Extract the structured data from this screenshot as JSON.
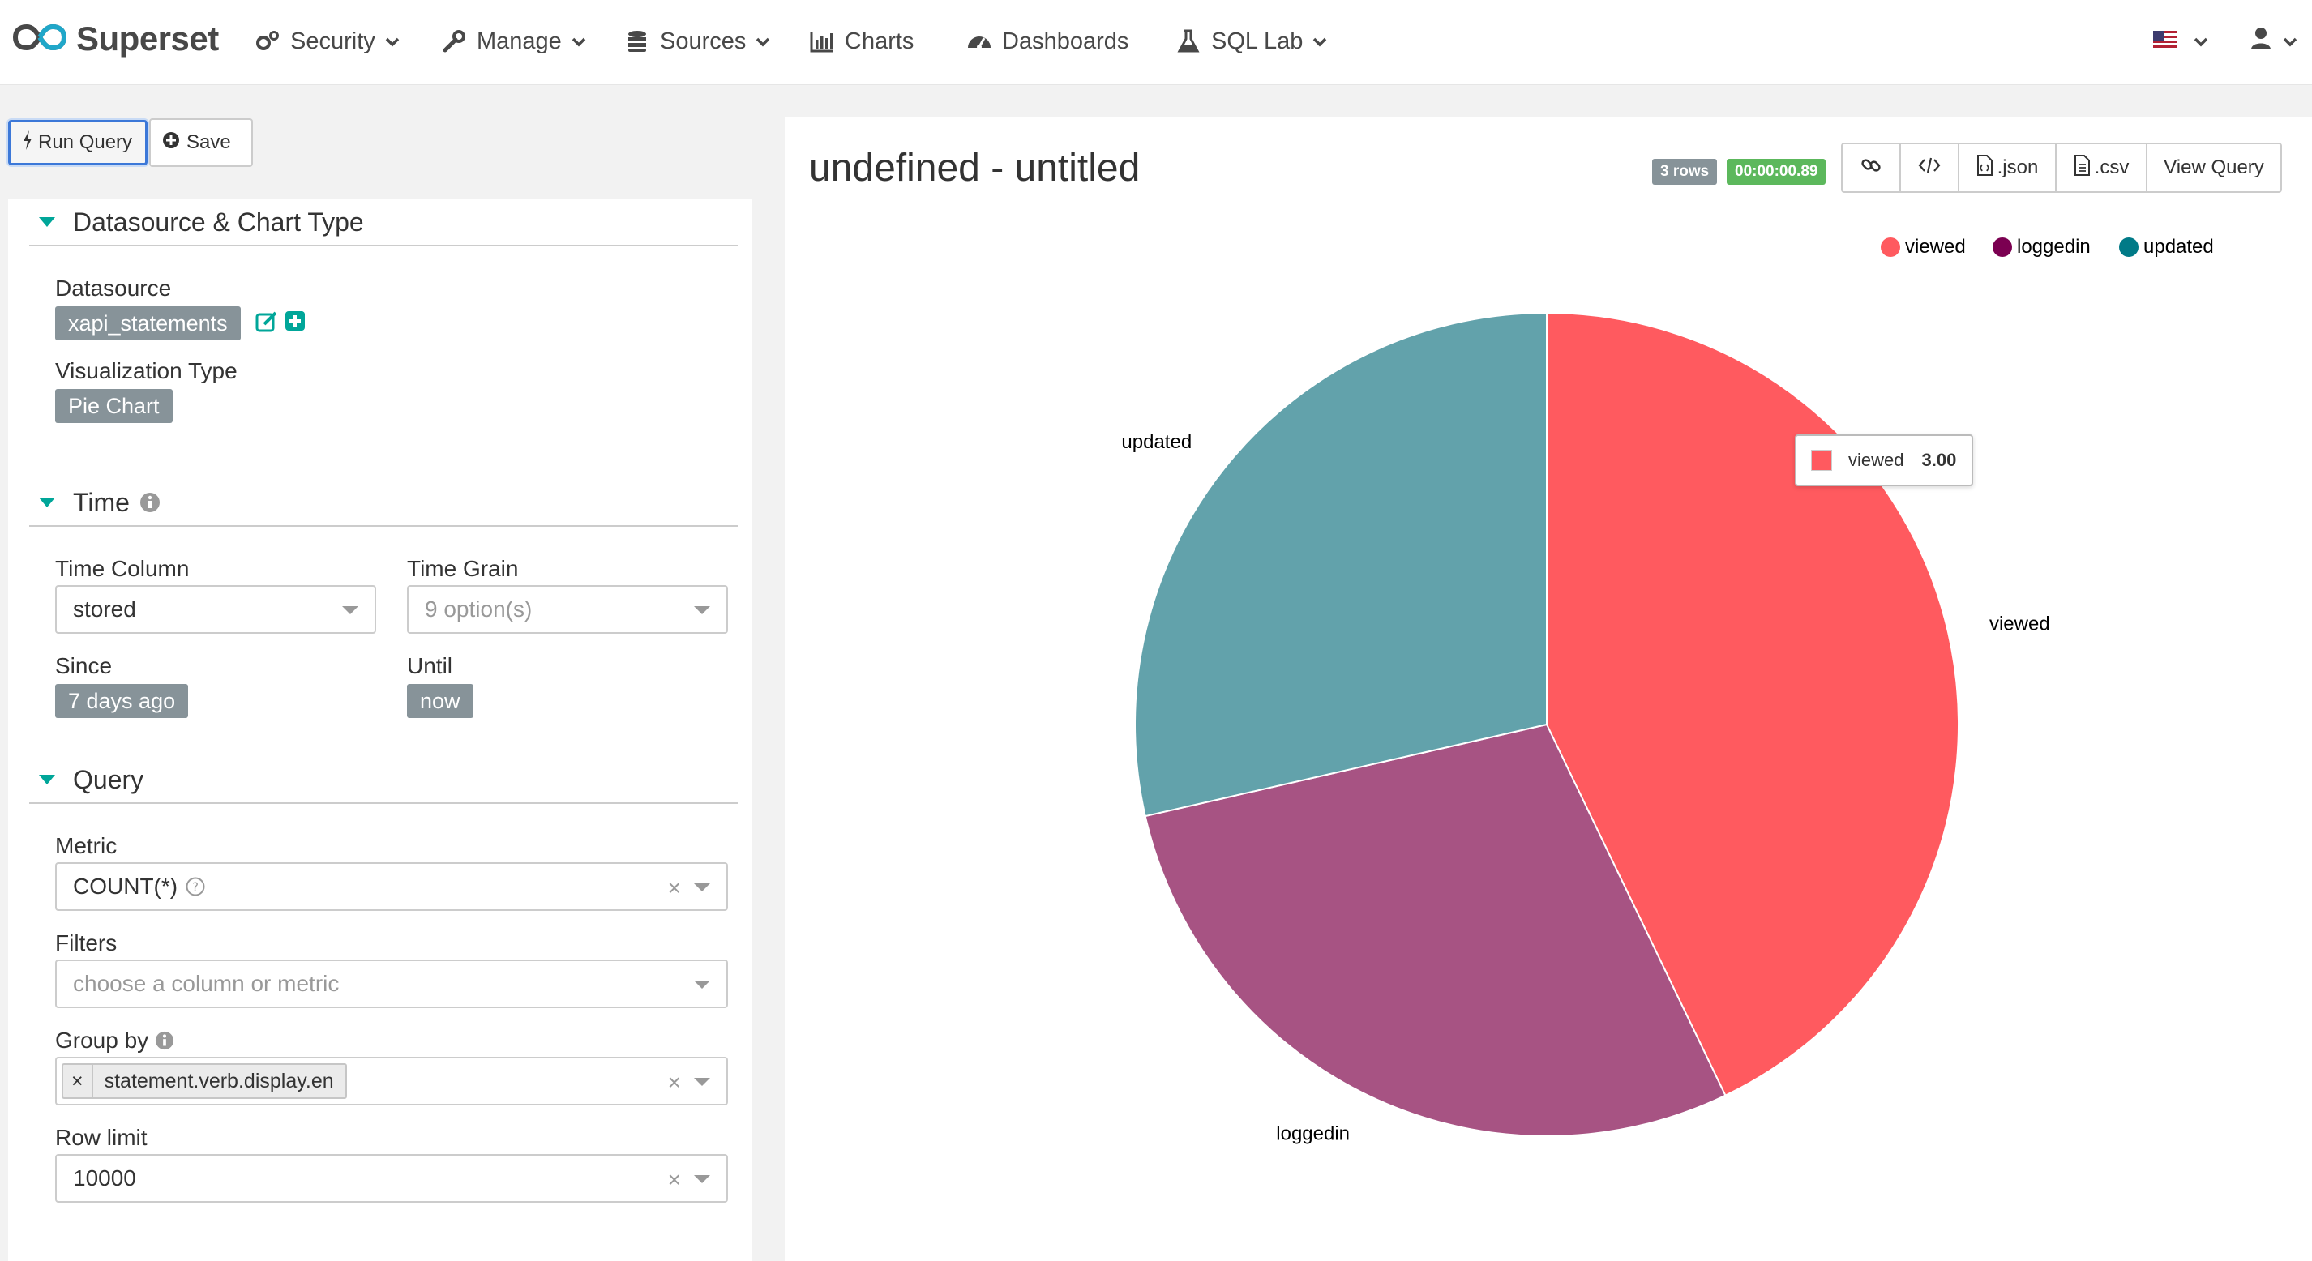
{
  "app": {
    "brand": "Superset"
  },
  "nav": {
    "security": "Security",
    "manage": "Manage",
    "sources": "Sources",
    "charts": "Charts",
    "dashboards": "Dashboards",
    "sqllab": "SQL Lab"
  },
  "toolbar": {
    "run_query": "Run Query",
    "save": "Save"
  },
  "sections": {
    "datasource": {
      "title": "Datasource & Chart Type",
      "datasource_label": "Datasource",
      "datasource_value": "xapi_statements",
      "viz_label": "Visualization Type",
      "viz_value": "Pie Chart"
    },
    "time": {
      "title": "Time",
      "time_column_label": "Time Column",
      "time_column_value": "stored",
      "time_grain_label": "Time Grain",
      "time_grain_placeholder": "9 option(s)",
      "since_label": "Since",
      "since_value": "7 days ago",
      "until_label": "Until",
      "until_value": "now"
    },
    "query": {
      "title": "Query",
      "metric_label": "Metric",
      "metric_value": "COUNT(*)",
      "filters_label": "Filters",
      "filters_placeholder": "choose a column or metric",
      "groupby_label": "Group by",
      "groupby_value": "statement.verb.display.en",
      "row_limit_label": "Row limit",
      "row_limit_value": "10000"
    }
  },
  "chart_header": {
    "title": "undefined - untitled",
    "rows_badge": "3 rows",
    "time_badge": "00:00:00.89",
    "json_label": ".json",
    "csv_label": ".csv",
    "view_query_label": "View Query"
  },
  "tooltip": {
    "label": "viewed",
    "value": "3.00"
  },
  "colors": {
    "viewed": "#ff5a5f",
    "loggedin": "#a75383",
    "updated": "#62a2ab",
    "legend_loggedin": "#7b0051",
    "legend_updated": "#007a87",
    "accent": "#00a699"
  },
  "chart_data": {
    "type": "pie",
    "categories": [
      "viewed",
      "loggedin",
      "updated"
    ],
    "values": [
      3,
      2,
      2
    ],
    "legend": [
      "viewed",
      "loggedin",
      "updated"
    ],
    "legend_position": "top-right"
  }
}
